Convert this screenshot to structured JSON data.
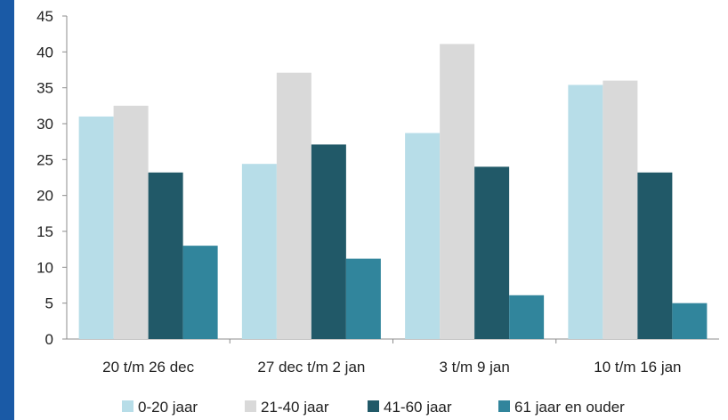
{
  "chart_data": {
    "type": "bar",
    "categories": [
      "20 t/m 26 dec",
      "27 dec t/m 2 jan",
      "3 t/m 9 jan",
      "10 t/m 16 jan"
    ],
    "series": [
      {
        "name": "0-20 jaar",
        "color": "#b7dde8",
        "values": [
          31,
          24.4,
          28.7,
          35.4
        ]
      },
      {
        "name": "21-40 jaar",
        "color": "#d9d9d9",
        "values": [
          32.5,
          37.1,
          41.1,
          36
        ]
      },
      {
        "name": "41-60 jaar",
        "color": "#215968",
        "values": [
          23.2,
          27.1,
          24,
          23.2
        ]
      },
      {
        "name": "61 jaar en ouder",
        "color": "#31859c",
        "values": [
          13,
          11.2,
          6.1,
          5
        ]
      }
    ],
    "yticks": [
      "0",
      "5",
      "10",
      "15",
      "20",
      "25",
      "30",
      "35",
      "40",
      "45"
    ],
    "ylim": [
      0,
      45
    ],
    "grid": false,
    "legend_position": "bottom"
  }
}
